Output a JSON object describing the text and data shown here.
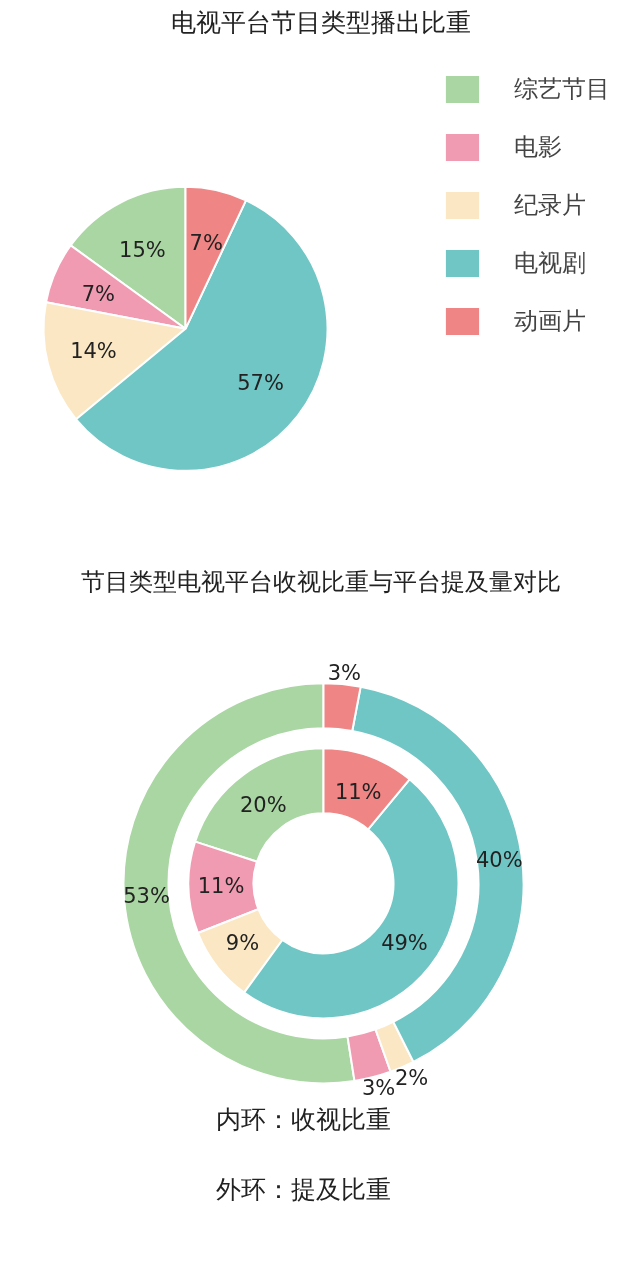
{
  "chart_data": [
    {
      "type": "pie",
      "title": "电视平台节目类型播出比重",
      "categories": [
        "综艺节目",
        "电影",
        "纪录片",
        "电视剧",
        "动画片"
      ],
      "values": [
        15,
        7,
        14,
        57,
        7
      ],
      "colors": [
        "#a9d6a2",
        "#f19bb2",
        "#fbe7c3",
        "#6fc6c4",
        "#ef8585"
      ],
      "value_labels": [
        "15%",
        "7%",
        "14%",
        "57%",
        "7%"
      ],
      "legend": "right"
    },
    {
      "type": "donut",
      "title": "节目类型电视平台收视比重与平台提及量对比",
      "categories": [
        null,
        null,
        null,
        null,
        null
      ],
      "colors": [
        "#a9d6a2",
        "#f19bb2",
        "#fbe7c3",
        "#6fc6c4",
        "#ef8585"
      ],
      "series": [
        {
          "values": [
            20,
            11,
            9,
            49,
            11
          ],
          "value_labels": [
            "20%",
            "11%",
            "9%",
            "49%",
            "11%"
          ]
        },
        {
          "values": [
            53,
            3,
            2,
            40,
            3
          ],
          "value_labels": [
            "53%",
            "3%",
            "2%",
            "40%",
            "3%"
          ]
        }
      ],
      "annotations": [
        "内环：收视比重",
        "外环：提及比重"
      ],
      "legend": false
    }
  ]
}
